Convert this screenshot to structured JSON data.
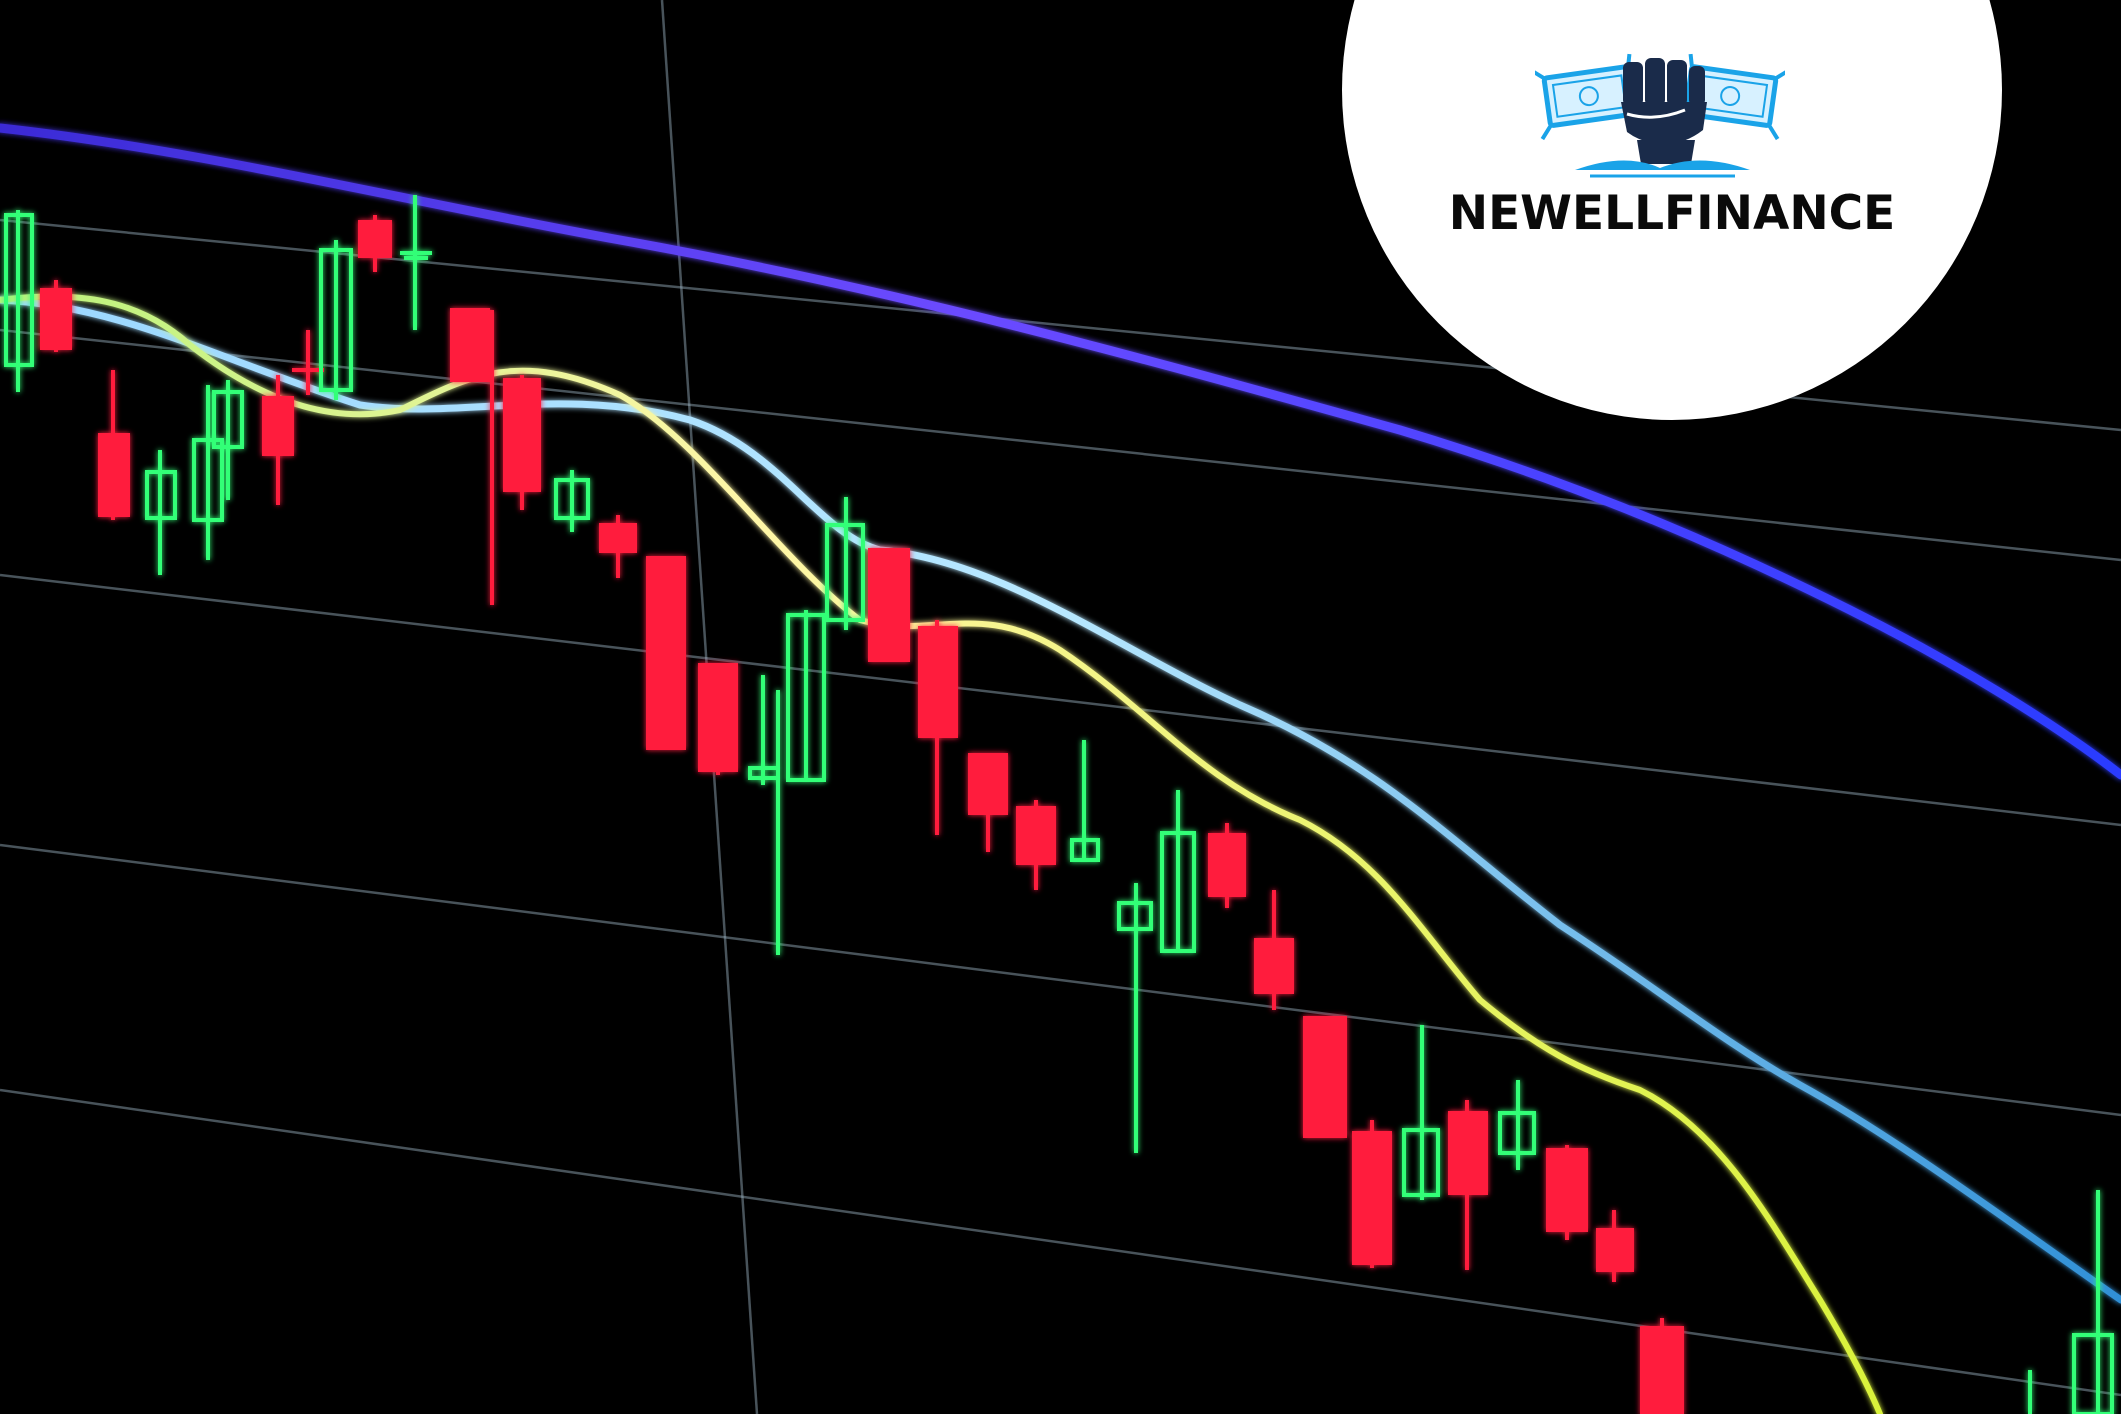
{
  "brand": {
    "name": "NEWELLFINANCE",
    "logo_icon": "fist-holding-cash-icon",
    "badge_color": "#ffffff",
    "text_color": "#0a0a0a",
    "accent_color": "#1aa3e8",
    "fist_color": "#1a2b4a"
  },
  "scene": {
    "background_color": "#000000",
    "bullish_color": "#33ff77",
    "bearish_color": "#ff1f3d",
    "grid_color": "#9fb8c8",
    "moving_average_colors": [
      "#7a4dff",
      "#7fd3f7",
      "#f2f27a"
    ]
  }
}
